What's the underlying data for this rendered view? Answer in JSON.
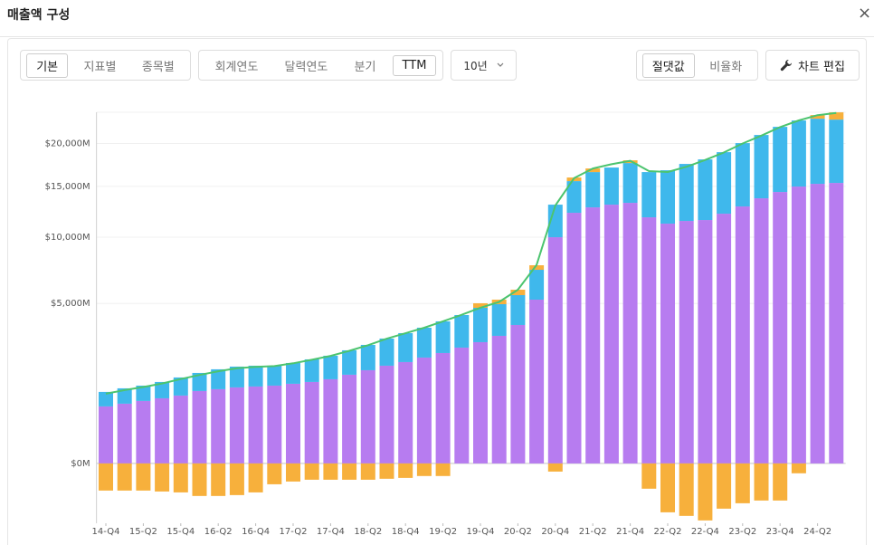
{
  "header": {
    "title": "매출액 구성",
    "close": "×"
  },
  "toolbar": {
    "view": [
      "기본",
      "지표별",
      "종목별"
    ],
    "view_selected": 0,
    "period": [
      "회계연도",
      "달력연도",
      "분기",
      "TTM"
    ],
    "period_selected": 3,
    "range": "10년",
    "mode": [
      "절댓값",
      "비율화"
    ],
    "mode_selected": 0,
    "edit": "차트 편집"
  },
  "chart_data": {
    "type": "bar",
    "stacked": true,
    "scale": "sqrt",
    "grid": true,
    "categories": [
      "14-Q4",
      null,
      "15-Q2",
      null,
      "15-Q4",
      null,
      "16-Q2",
      null,
      "16-Q4",
      null,
      "17-Q2",
      null,
      "17-Q4",
      null,
      "18-Q2",
      null,
      "18-Q4",
      null,
      "19-Q2",
      null,
      "19-Q4",
      null,
      "20-Q2",
      null,
      "20-Q4",
      null,
      "21-Q2",
      null,
      "21-Q4",
      null,
      "22-Q2",
      null,
      "22-Q4",
      null,
      "23-Q2",
      null,
      "23-Q4",
      null,
      "24-Q2",
      null
    ],
    "ylim": [
      -700,
      24100
    ],
    "yticks": [
      {
        "value": 0,
        "label": "$0M"
      },
      {
        "value": 5000,
        "label": "$5,000M"
      },
      {
        "value": 10000,
        "label": "$10,000M"
      },
      {
        "value": 15000,
        "label": "$15,000M"
      },
      {
        "value": 20000,
        "label": "$20,000M"
      }
    ],
    "series": [
      {
        "color": "#b77cf0",
        "values": [
          635,
          697,
          762,
          829,
          900,
          1024,
          1076,
          1129,
          1156,
          1183,
          1239,
          1296,
          1384,
          1537,
          1697,
          1866,
          2007,
          2190,
          2381,
          2621,
          2873,
          3181,
          3745,
          5242,
          10000,
          12277,
          12814,
          13087,
          13271,
          11837,
          11236,
          11492,
          11578,
          12188,
          12905,
          13736,
          14400,
          14982,
          15277,
          15376
        ]
      },
      {
        "color": "#3fb8ec",
        "values": [
          364,
          405,
          421,
          467,
          544,
          576,
          655,
          703,
          710,
          683,
          732,
          820,
          882,
          963,
          1049,
          1181,
          1311,
          1410,
          1563,
          1682,
          1860,
          1775,
          1790,
          2085,
          3087,
          3298,
          3775,
          4022,
          4365,
          4752,
          5560,
          6038,
          6485,
          6746,
          7146,
          7347,
          7741,
          8001,
          7949,
          7728
        ]
      },
      {
        "color": "#f7b03c",
        "values": [
          -144,
          -144,
          -144,
          -154,
          -164,
          -207,
          -207,
          -196,
          -164,
          -85,
          -64,
          -52,
          -52,
          -52,
          -52,
          -46,
          -41,
          -31,
          -31,
          0,
          280,
          286,
          363,
          347,
          -13,
          402,
          415,
          0,
          320,
          -125,
          -467,
          -538,
          -635,
          -400,
          -310,
          -269,
          -269,
          -19,
          490,
          983
        ]
      },
      {
        "type": "line",
        "color": "#4cc46f",
        "values": [
          950,
          1050,
          1140,
          1250,
          1390,
          1530,
          1660,
          1770,
          1820,
          1850,
          1960,
          2100,
          2260,
          2480,
          2730,
          3040,
          3310,
          3600,
          3950,
          4320,
          4740,
          5100,
          5900,
          7700,
          13000,
          15900,
          17000,
          17500,
          17900,
          16700,
          16600,
          17200,
          18000,
          18900,
          20000,
          21000,
          22100,
          23000,
          23700,
          24000
        ]
      }
    ]
  }
}
